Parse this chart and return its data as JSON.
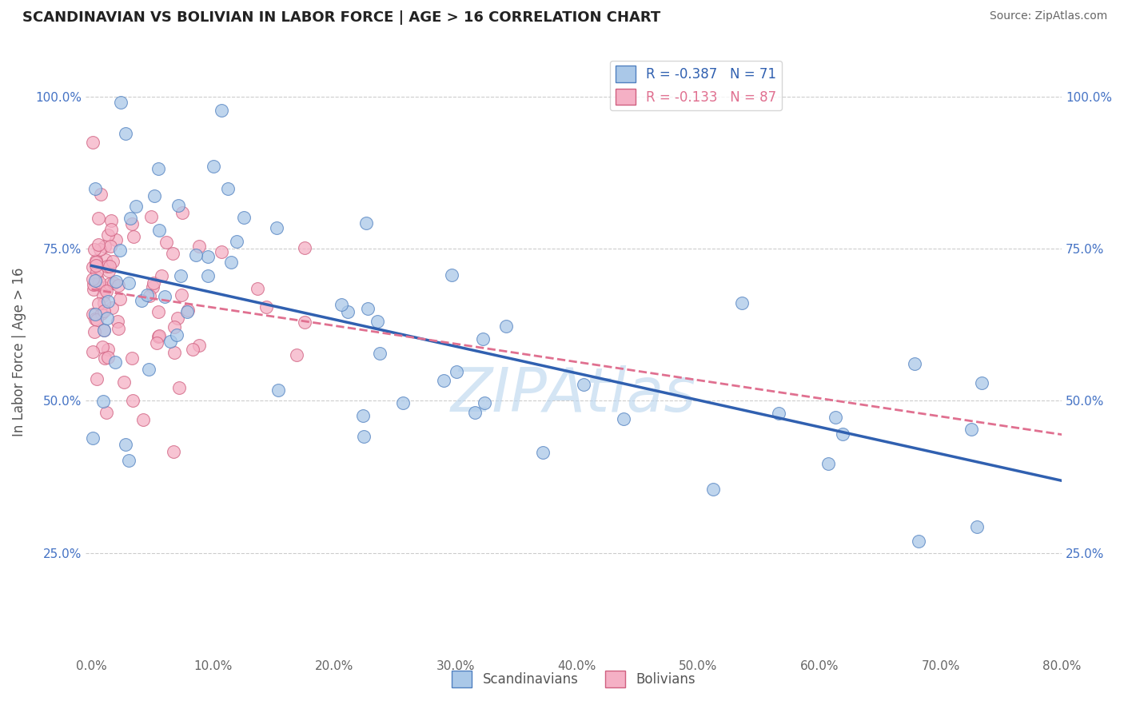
{
  "title": "SCANDINAVIAN VS BOLIVIAN IN LABOR FORCE | AGE > 16 CORRELATION CHART",
  "source": "Source: ZipAtlas.com",
  "ylabel": "In Labor Force | Age > 16",
  "legend_labels": [
    "Scandinavians",
    "Bolivians"
  ],
  "r_scandinavian": -0.387,
  "n_scandinavian": 71,
  "r_bolivian": -0.133,
  "n_bolivian": 87,
  "color_scandinavian": "#aac8e8",
  "color_bolivian": "#f5b0c5",
  "line_color_scandinavian": "#3060b0",
  "line_color_bolivian": "#e07090",
  "xlim": [
    -0.005,
    0.8
  ],
  "ylim": [
    0.08,
    1.08
  ],
  "xticks": [
    0.0,
    0.1,
    0.2,
    0.3,
    0.4,
    0.5,
    0.6,
    0.7,
    0.8
  ],
  "yticks": [
    0.25,
    0.5,
    0.75,
    1.0
  ],
  "xticklabels": [
    "0.0%",
    "10.0%",
    "20.0%",
    "30.0%",
    "40.0%",
    "50.0%",
    "60.0%",
    "70.0%",
    "80.0%"
  ],
  "yticklabels": [
    "25.0%",
    "50.0%",
    "75.0%",
    "100.0%"
  ],
  "watermark": "ZIPAtlas",
  "background_color": "#ffffff",
  "scan_intercept": 0.685,
  "scan_slope": -0.305,
  "boli_intercept": 0.685,
  "boli_slope": -0.21
}
